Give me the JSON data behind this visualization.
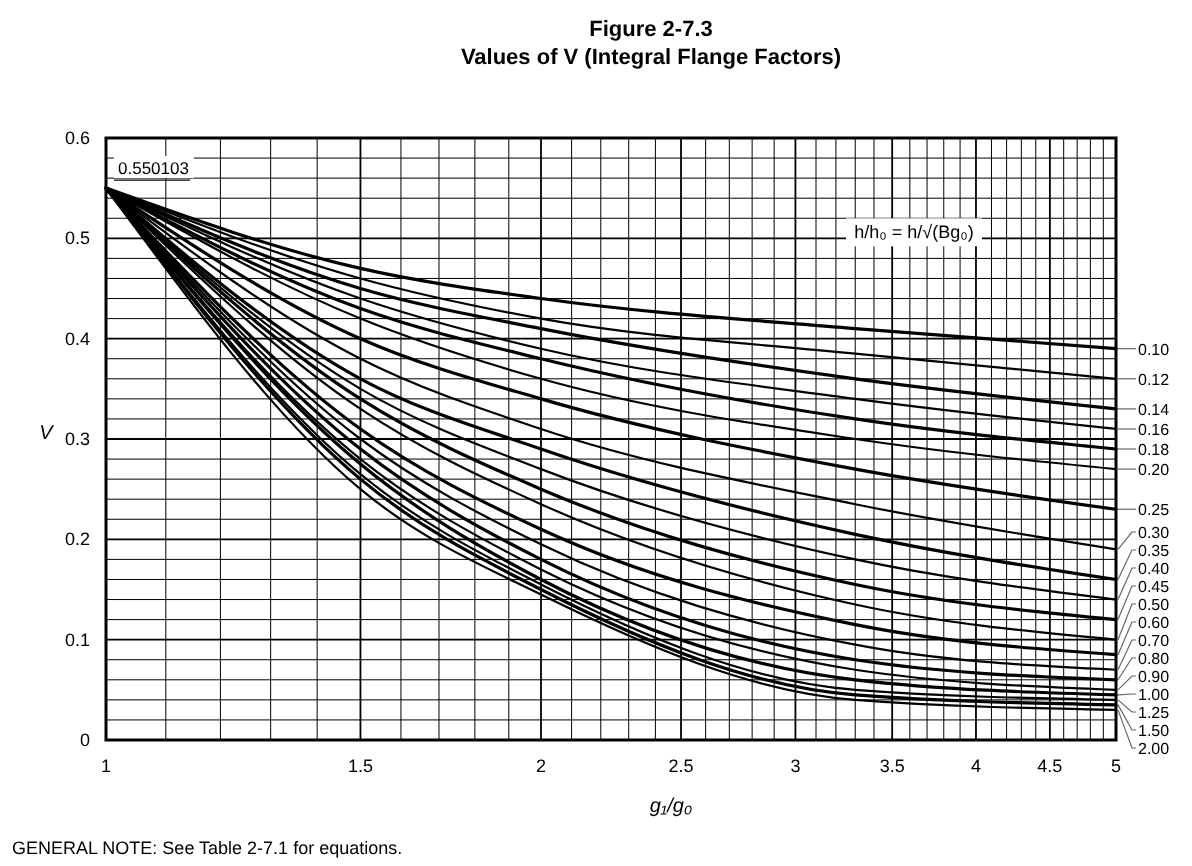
{
  "chart_data": {
    "type": "line",
    "title": "Figure 2-7.3",
    "subtitle": "Values of V (Integral Flange Factors)",
    "xlabel": "g₁/g₀",
    "ylabel": "V",
    "legend_title": "h/h₀ = h/√(Bg₀)",
    "log": "x",
    "grid": true,
    "x": [
      1,
      1.5,
      2,
      3.3,
      5
    ],
    "xlim": [
      1,
      5
    ],
    "xticks": [
      1,
      {
        "value": 1.1,
        "label": null
      },
      {
        "value": 1.2,
        "label": null
      },
      {
        "value": 1.3,
        "label": null
      },
      {
        "value": 1.4,
        "label": null
      },
      1.5,
      {
        "value": 1.6,
        "label": null
      },
      {
        "value": 1.7,
        "label": null
      },
      {
        "value": 1.8,
        "label": null
      },
      {
        "value": 1.9,
        "label": null
      },
      2,
      {
        "value": 2.1,
        "label": null
      },
      {
        "value": 2.2,
        "label": null
      },
      {
        "value": 2.3,
        "label": null
      },
      {
        "value": 2.4,
        "label": null
      },
      2.5,
      {
        "value": 2.6,
        "label": null
      },
      {
        "value": 2.7,
        "label": null
      },
      {
        "value": 2.8,
        "label": null
      },
      {
        "value": 2.9,
        "label": null
      },
      3,
      {
        "value": 3.1,
        "label": null
      },
      {
        "value": 3.2,
        "label": null
      },
      {
        "value": 3.3,
        "label": null
      },
      {
        "value": 3.4,
        "label": null
      },
      3.5,
      {
        "value": 3.6,
        "label": null
      },
      {
        "value": 3.7,
        "label": null
      },
      {
        "value": 3.8,
        "label": null
      },
      {
        "value": 3.9,
        "label": null
      },
      4,
      {
        "value": 4.1,
        "label": null
      },
      {
        "value": 4.2,
        "label": null
      },
      {
        "value": 4.3,
        "label": null
      },
      {
        "value": 4.4,
        "label": null
      },
      4.5,
      {
        "value": 4.6,
        "label": null
      },
      {
        "value": 4.7,
        "label": null
      },
      {
        "value": 4.8,
        "label": null
      },
      {
        "value": 4.9,
        "label": null
      },
      5
    ],
    "ylim": [
      0,
      0.6
    ],
    "yticks": [
      0,
      {
        "value": 0.02,
        "label": null
      },
      {
        "value": 0.04,
        "label": null
      },
      {
        "value": 0.06,
        "label": null
      },
      {
        "value": 0.08,
        "label": null
      },
      0.1,
      {
        "value": 0.12,
        "label": null
      },
      {
        "value": 0.14,
        "label": null
      },
      {
        "value": 0.16,
        "label": null
      },
      {
        "value": 0.18,
        "label": null
      },
      0.2,
      {
        "value": 0.22,
        "label": null
      },
      {
        "value": 0.24,
        "label": null
      },
      {
        "value": 0.26,
        "label": null
      },
      {
        "value": 0.28,
        "label": null
      },
      0.3,
      {
        "value": 0.32,
        "label": null
      },
      {
        "value": 0.34,
        "label": null
      },
      {
        "value": 0.36,
        "label": null
      },
      {
        "value": 0.38,
        "label": null
      },
      0.4,
      {
        "value": 0.42,
        "label": null
      },
      {
        "value": 0.44,
        "label": null
      },
      {
        "value": 0.46,
        "label": null
      },
      {
        "value": 0.48,
        "label": null
      },
      0.5,
      {
        "value": 0.52,
        "label": null
      },
      {
        "value": 0.54,
        "label": null
      },
      {
        "value": 0.56,
        "label": null
      },
      {
        "value": 0.58,
        "label": null
      },
      0.6
    ],
    "series": [
      {
        "name": "0.10",
        "color": "#000000",
        "values": [
          0.550103,
          0.47,
          0.44,
          0.41,
          0.39
        ]
      },
      {
        "name": "0.12",
        "color": "#000000",
        "values": [
          0.550103,
          0.46,
          0.42,
          0.385,
          0.36
        ]
      },
      {
        "name": "0.14",
        "color": "#000000",
        "values": [
          0.550103,
          0.45,
          0.41,
          0.36,
          0.33
        ]
      },
      {
        "name": "0.16",
        "color": "#000000",
        "values": [
          0.550103,
          0.44,
          0.39,
          0.34,
          0.31
        ]
      },
      {
        "name": "0.18",
        "color": "#000000",
        "values": [
          0.550103,
          0.43,
          0.38,
          0.32,
          0.29
        ]
      },
      {
        "name": "0.20",
        "color": "#000000",
        "values": [
          0.550103,
          0.42,
          0.36,
          0.3,
          0.27
        ]
      },
      {
        "name": "0.25",
        "color": "#000000",
        "values": [
          0.550103,
          0.4,
          0.34,
          0.27,
          0.23
        ]
      },
      {
        "name": "0.30",
        "color": "#000000",
        "values": [
          0.550103,
          0.38,
          0.31,
          0.235,
          0.19
        ]
      },
      {
        "name": "0.35",
        "color": "#000000",
        "values": [
          0.550103,
          0.36,
          0.29,
          0.205,
          0.16
        ]
      },
      {
        "name": "0.40",
        "color": "#000000",
        "values": [
          0.550103,
          0.35,
          0.27,
          0.18,
          0.14
        ]
      },
      {
        "name": "0.45",
        "color": "#000000",
        "values": [
          0.550103,
          0.34,
          0.25,
          0.155,
          0.12
        ]
      },
      {
        "name": "0.50",
        "color": "#000000",
        "values": [
          0.550103,
          0.33,
          0.235,
          0.135,
          0.1
        ]
      },
      {
        "name": "0.60",
        "color": "#000000",
        "values": [
          0.550103,
          0.31,
          0.21,
          0.115,
          0.085
        ]
      },
      {
        "name": "0.70",
        "color": "#000000",
        "values": [
          0.550103,
          0.3,
          0.195,
          0.095,
          0.07
        ]
      },
      {
        "name": "0.80",
        "color": "#000000",
        "values": [
          0.550103,
          0.29,
          0.18,
          0.08,
          0.06
        ]
      },
      {
        "name": "0.90",
        "color": "#000000",
        "values": [
          0.550103,
          0.28,
          0.17,
          0.07,
          0.05
        ]
      },
      {
        "name": "1.00",
        "color": "#000000",
        "values": [
          0.550103,
          0.275,
          0.16,
          0.06,
          0.045
        ]
      },
      {
        "name": "1.25",
        "color": "#000000",
        "values": [
          0.550103,
          0.265,
          0.155,
          0.05,
          0.04
        ]
      },
      {
        "name": "1.50",
        "color": "#000000",
        "values": [
          0.550103,
          0.26,
          0.15,
          0.045,
          0.035
        ]
      },
      {
        "name": "2.00",
        "color": "#000000",
        "values": [
          0.550103,
          0.25,
          0.145,
          0.04,
          0.03
        ]
      }
    ],
    "annotations": [
      {
        "text": "0.550103",
        "x": 1,
        "y": 0.550103
      },
      "GENERAL NOTE: See Table 2-7.1 for equations."
    ]
  }
}
